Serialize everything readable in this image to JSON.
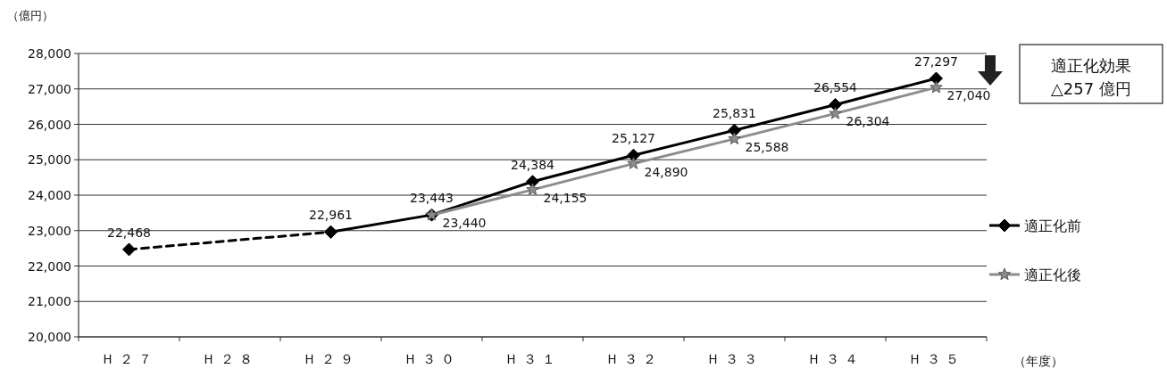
{
  "chart_data": {
    "type": "line",
    "ylabel": "（億円）",
    "xlabel": "（年度）",
    "categories": [
      "Ｈ２７",
      "Ｈ２８",
      "Ｈ２９",
      "Ｈ３０",
      "Ｈ３１",
      "Ｈ３２",
      "Ｈ３３",
      "Ｈ３４",
      "Ｈ３５"
    ],
    "series": [
      {
        "color": "#000000",
        "line_style": "dashed",
        "marker": "diamond",
        "values": [
          22468,
          null,
          22961,
          null,
          null,
          null,
          null,
          null,
          null
        ],
        "value_labels": [
          "22,468",
          null,
          null,
          null,
          null,
          null,
          null,
          null,
          null
        ]
      },
      {
        "name": "適正化前",
        "color": "#000000",
        "line_style": "solid",
        "marker": "diamond",
        "values": [
          null,
          null,
          22961,
          23443,
          24384,
          25127,
          25831,
          26554,
          27297
        ],
        "value_labels": [
          null,
          null,
          "22,961",
          "23,443",
          "24,384",
          "25,127",
          "25,831",
          "26,554",
          "27,297"
        ]
      },
      {
        "name": "適正化後",
        "color": "#8c8c8c",
        "line_style": "solid",
        "marker": "star",
        "values": [
          null,
          null,
          null,
          23440,
          24155,
          24890,
          25588,
          26304,
          27040
        ],
        "value_labels": [
          null,
          null,
          null,
          "23,440",
          "24,155",
          "24,890",
          "25,588",
          "26,304",
          "27,040"
        ]
      }
    ],
    "ylim": [
      20000,
      28000
    ],
    "yticks": [
      {
        "value": 20000,
        "label": "20,000"
      },
      {
        "value": 21000,
        "label": "21,000"
      },
      {
        "value": 22000,
        "label": "22,000"
      },
      {
        "value": 23000,
        "label": "23,000"
      },
      {
        "value": 24000,
        "label": "24,000"
      },
      {
        "value": 25000,
        "label": "25,000"
      },
      {
        "value": 26000,
        "label": "26,000"
      },
      {
        "value": 27000,
        "label": "27,000"
      },
      {
        "value": 28000,
        "label": "28,000"
      }
    ],
    "grid": "y",
    "legend": "right",
    "annotations": [
      "適正化効果",
      "△257 億円"
    ]
  }
}
